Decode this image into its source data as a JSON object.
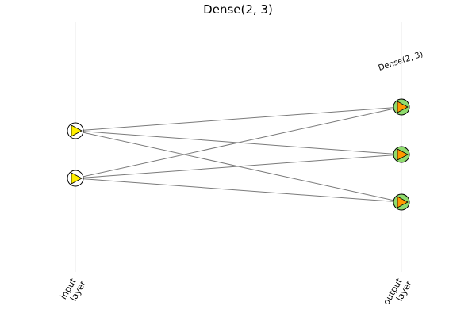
{
  "title": "Dense(2, 3)",
  "layer_annotation": "Dense(2, 3)",
  "layers": [
    {
      "name": "input layer",
      "label_lines": [
        "input",
        "layer"
      ],
      "nodes": 2,
      "node_fill": "#ffffff",
      "marker_fill": "#ffee00"
    },
    {
      "name": "output layer",
      "label_lines": [
        "output",
        "layer"
      ],
      "nodes": 3,
      "node_fill": "#8fdc6e",
      "marker_fill": "#ff9900"
    }
  ],
  "connections": [
    [
      0,
      0
    ],
    [
      0,
      1
    ],
    [
      0,
      2
    ],
    [
      1,
      0
    ],
    [
      1,
      1
    ],
    [
      1,
      2
    ]
  ],
  "colors": {
    "edge": "#7a7a7a",
    "grid": "#e9e9e9",
    "outline": "#000000"
  }
}
